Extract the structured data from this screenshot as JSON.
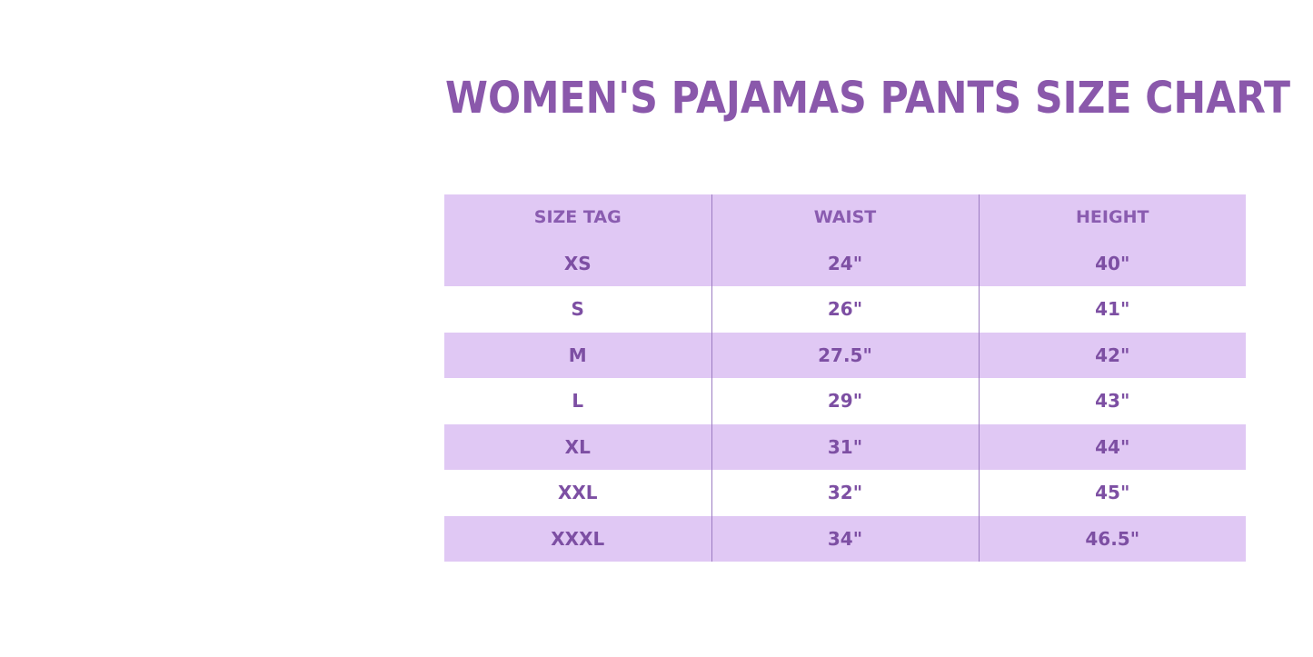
{
  "header": {
    "title": "WOMEN'S PAJAMAS PANTS SIZE CHART"
  },
  "table": {
    "columns": [
      "SIZE TAG",
      "WAIST",
      "HEIGHT"
    ],
    "rows": [
      [
        "XS",
        "24\"",
        "40\""
      ],
      [
        "S",
        "26\"",
        "41\""
      ],
      [
        "M",
        "27.5\"",
        "42\""
      ],
      [
        "L",
        "29\"",
        "43\""
      ],
      [
        "XL",
        "31\"",
        "44\""
      ],
      [
        "XXL",
        "32\"",
        "45\""
      ],
      [
        "XXXL",
        "34\"",
        "46.5\""
      ]
    ]
  }
}
